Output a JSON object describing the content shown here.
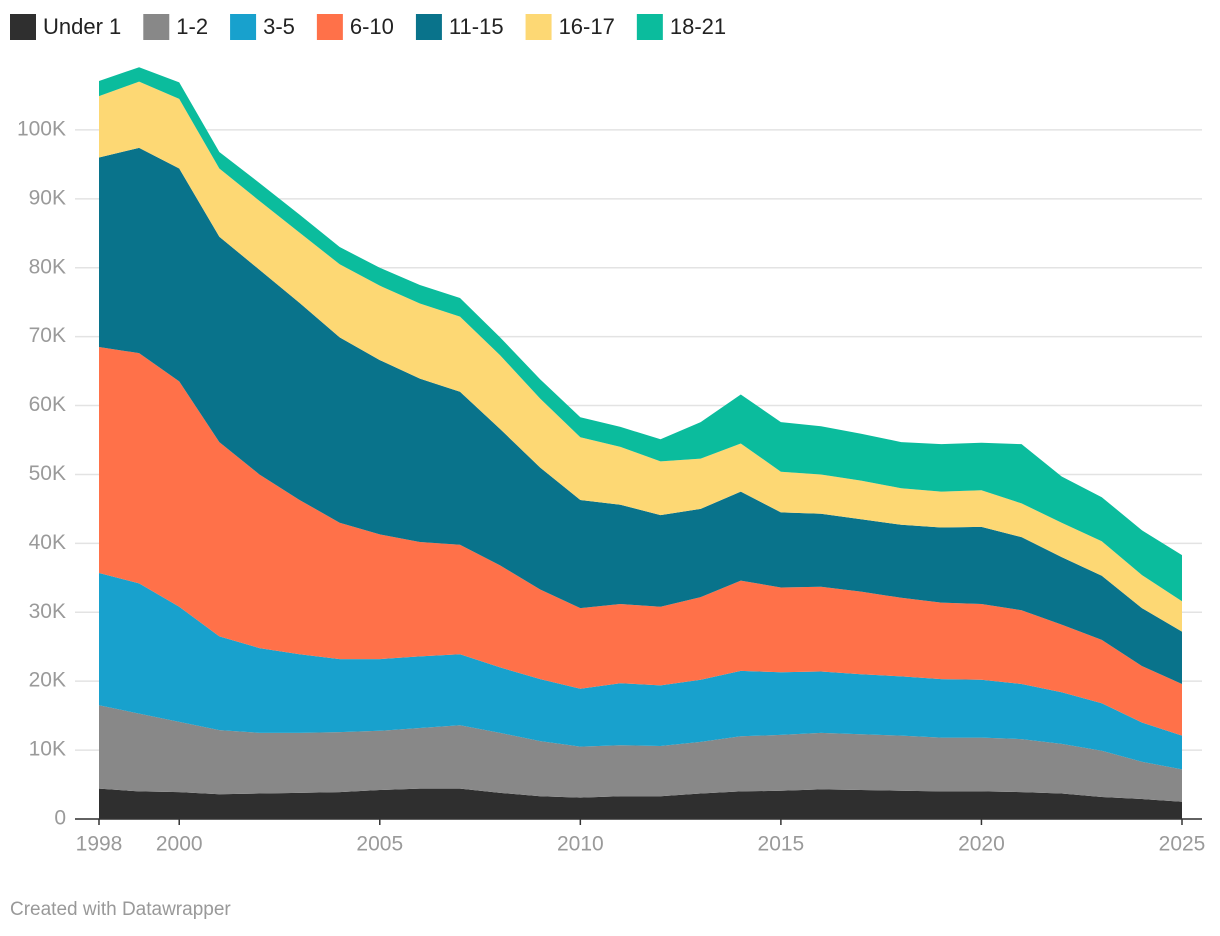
{
  "chart_data": {
    "type": "stacked_area",
    "x": [
      1998,
      1999,
      2000,
      2001,
      2002,
      2003,
      2004,
      2005,
      2006,
      2007,
      2008,
      2009,
      2010,
      2011,
      2012,
      2013,
      2014,
      2015,
      2016,
      2017,
      2018,
      2019,
      2020,
      2021,
      2022,
      2023,
      2024,
      2025
    ],
    "series": [
      {
        "name": "Under 1",
        "color": "#2f2f2f",
        "values": [
          4400,
          4000,
          3900,
          3600,
          3700,
          3800,
          3900,
          4200,
          4400,
          4400,
          3800,
          3300,
          3100,
          3300,
          3300,
          3700,
          4000,
          4100,
          4300,
          4200,
          4100,
          4000,
          4000,
          3900,
          3700,
          3200,
          2900,
          2500
        ]
      },
      {
        "name": "1-2",
        "color": "#888888",
        "values": [
          12100,
          11300,
          10200,
          9300,
          8800,
          8700,
          8700,
          8600,
          8800,
          9200,
          8700,
          8000,
          7400,
          7400,
          7300,
          7500,
          8000,
          8100,
          8200,
          8100,
          8000,
          7800,
          7800,
          7700,
          7200,
          6700,
          5400,
          4700
        ]
      },
      {
        "name": "3-5",
        "color": "#18a1cd",
        "values": [
          19200,
          18900,
          16700,
          13600,
          12300,
          11400,
          10600,
          10400,
          10400,
          10300,
          9500,
          9000,
          8400,
          9000,
          8800,
          9000,
          9500,
          9100,
          8900,
          8700,
          8600,
          8500,
          8400,
          8000,
          7500,
          6900,
          5700,
          4900
        ]
      },
      {
        "name": "6-10",
        "color": "#ff7149",
        "values": [
          32800,
          33400,
          32700,
          28200,
          25200,
          22400,
          19800,
          18100,
          16600,
          15900,
          14800,
          13000,
          11700,
          11500,
          11400,
          12000,
          13100,
          12300,
          12300,
          12000,
          11400,
          11100,
          11000,
          10700,
          9800,
          9200,
          8200,
          7500
        ]
      },
      {
        "name": "11-15",
        "color": "#09738b",
        "values": [
          27500,
          29800,
          30900,
          29800,
          29700,
          28600,
          26900,
          25300,
          23700,
          22200,
          19800,
          17700,
          15700,
          14400,
          13300,
          12800,
          12900,
          10900,
          10600,
          10500,
          10600,
          10900,
          11200,
          10600,
          9800,
          9300,
          8400,
          7600
        ]
      },
      {
        "name": "16-17",
        "color": "#fdd874",
        "values": [
          8900,
          9600,
          10100,
          9900,
          10000,
          10200,
          10600,
          10800,
          10900,
          10900,
          10700,
          10000,
          9100,
          8400,
          7800,
          7300,
          7000,
          5900,
          5700,
          5600,
          5300,
          5200,
          5300,
          4900,
          5000,
          5000,
          4800,
          4400
        ]
      },
      {
        "name": "18-21",
        "color": "#0bbc9d",
        "values": [
          2200,
          2100,
          2400,
          2400,
          2600,
          2600,
          2500,
          2600,
          2700,
          2700,
          2600,
          2800,
          2900,
          2900,
          3200,
          5300,
          7100,
          7200,
          7000,
          6800,
          6700,
          6900,
          6900,
          8600,
          6700,
          6400,
          6500,
          6700
        ]
      }
    ],
    "xlim": [
      1998,
      2025
    ],
    "xticks": [
      1998,
      2000,
      2005,
      2010,
      2015,
      2020,
      2025
    ],
    "ylim": [
      0,
      110000
    ],
    "yticks": [
      0,
      {
        "value": 10000,
        "label": "10K"
      },
      {
        "value": 20000,
        "label": "20K"
      },
      {
        "value": 30000,
        "label": "30K"
      },
      {
        "value": 40000,
        "label": "40K"
      },
      {
        "value": 50000,
        "label": "50K"
      },
      {
        "value": 60000,
        "label": "60K"
      },
      {
        "value": 70000,
        "label": "70K"
      },
      {
        "value": 80000,
        "label": "80K"
      },
      {
        "value": 90000,
        "label": "90K"
      },
      {
        "value": 100000,
        "label": "100K"
      }
    ],
    "grid": true,
    "legend": "top-left",
    "credit": "Created with Datawrapper"
  }
}
